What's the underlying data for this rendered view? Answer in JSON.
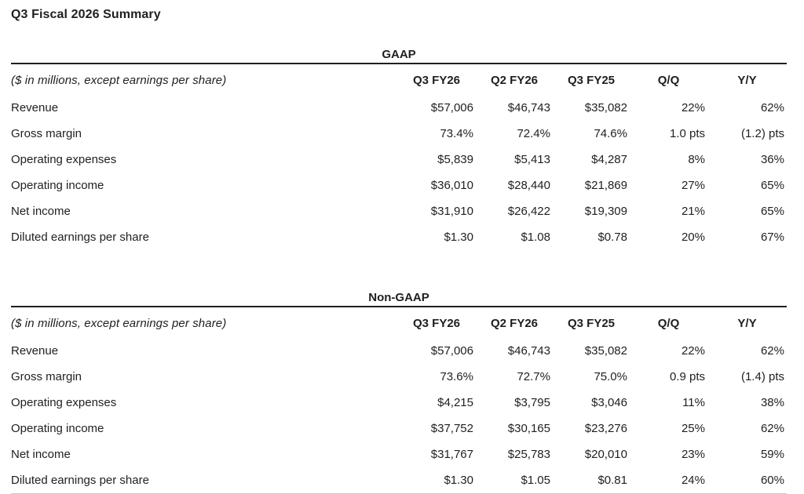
{
  "page_title": "Q3 Fiscal 2026 Summary",
  "colors": {
    "text": "#1f1f1f",
    "heavy_rule": "#1f1f1f",
    "light_bottom_rule": "#c9c9c9",
    "background": "#ffffff"
  },
  "tables": [
    {
      "section_title": "GAAP",
      "note": "($ in millions, except earnings per share)",
      "columns": [
        "Q3 FY26",
        "Q2 FY26",
        "Q3 FY25",
        "Q/Q",
        "Y/Y"
      ],
      "rows": [
        {
          "label": "Revenue",
          "values": [
            "$57,006",
            "$46,743",
            "$35,082",
            "22%",
            "62%"
          ]
        },
        {
          "label": "Gross margin",
          "values": [
            "73.4%",
            "72.4%",
            "74.6%",
            "1.0 pts",
            "(1.2) pts"
          ]
        },
        {
          "label": "Operating expenses",
          "values": [
            "$5,839",
            "$5,413",
            "$4,287",
            "8%",
            "36%"
          ]
        },
        {
          "label": "Operating income",
          "values": [
            "$36,010",
            "$28,440",
            "$21,869",
            "27%",
            "65%"
          ]
        },
        {
          "label": "Net income",
          "values": [
            "$31,910",
            "$26,422",
            "$19,309",
            "21%",
            "65%"
          ]
        },
        {
          "label": "Diluted earnings per share",
          "values": [
            "$1.30",
            "$1.08",
            "$0.78",
            "20%",
            "67%"
          ]
        }
      ]
    },
    {
      "section_title": "Non-GAAP",
      "note": "($ in millions, except earnings per share)",
      "columns": [
        "Q3 FY26",
        "Q2 FY26",
        "Q3 FY25",
        "Q/Q",
        "Y/Y"
      ],
      "rows": [
        {
          "label": "Revenue",
          "values": [
            "$57,006",
            "$46,743",
            "$35,082",
            "22%",
            "62%"
          ]
        },
        {
          "label": "Gross margin",
          "values": [
            "73.6%",
            "72.7%",
            "75.0%",
            "0.9 pts",
            "(1.4) pts"
          ]
        },
        {
          "label": "Operating expenses",
          "values": [
            "$4,215",
            "$3,795",
            "$3,046",
            "11%",
            "38%"
          ]
        },
        {
          "label": "Operating income",
          "values": [
            "$37,752",
            "$30,165",
            "$23,276",
            "25%",
            "62%"
          ]
        },
        {
          "label": "Net income",
          "values": [
            "$31,767",
            "$25,783",
            "$20,010",
            "23%",
            "59%"
          ]
        },
        {
          "label": "Diluted earnings per share",
          "values": [
            "$1.30",
            "$1.05",
            "$0.81",
            "24%",
            "60%"
          ]
        }
      ]
    }
  ]
}
